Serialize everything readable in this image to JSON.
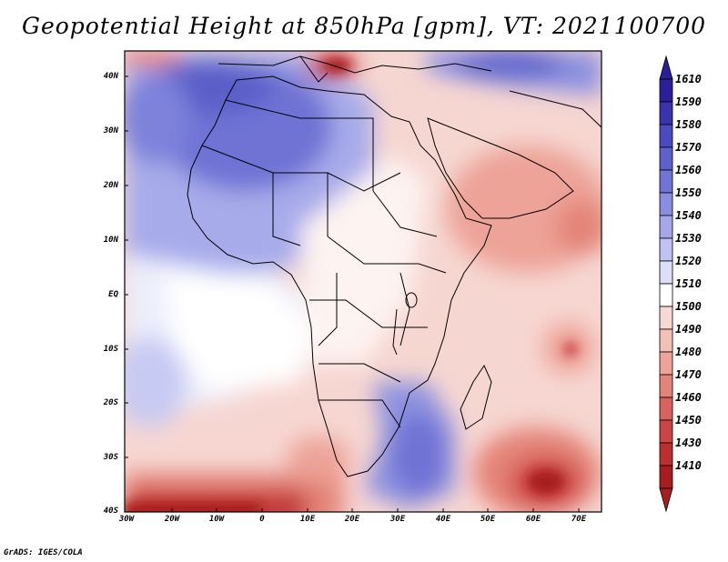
{
  "title": "Geopotential Height at 850hPa [gpm], VT: 2021100700",
  "footer": "GrADS: IGES/COLA",
  "lat_labels": [
    "40N",
    "30N",
    "20N",
    "10N",
    "EQ",
    "10S",
    "20S",
    "30S",
    "40S"
  ],
  "lon_labels": [
    "30W",
    "20W",
    "10W",
    "0",
    "10E",
    "20E",
    "30E",
    "40E",
    "50E",
    "60E",
    "70E"
  ],
  "colorbar": {
    "levels": [
      "1610",
      "1590",
      "1580",
      "1570",
      "1560",
      "1550",
      "1540",
      "1530",
      "1520",
      "1510",
      "1500",
      "1490",
      "1480",
      "1470",
      "1460",
      "1450",
      "1430",
      "1410"
    ],
    "colors": [
      "#2b1f9c",
      "#3a33ae",
      "#4c4ac0",
      "#5e60cc",
      "#7174d6",
      "#8a8ee0",
      "#a4a8ea",
      "#bfc2f2",
      "#dcdff8",
      "#ffffff",
      "#f8d8d4",
      "#f3c0b8",
      "#eda398",
      "#e48478",
      "#d9625a",
      "#cc4545",
      "#bd2e2e",
      "#a81e1e"
    ],
    "top_color": "#2b1f9c",
    "bottom_color": "#a81e1e"
  },
  "colors": {
    "ocean_base": "#dcdff8",
    "land_outline": "#000000"
  }
}
